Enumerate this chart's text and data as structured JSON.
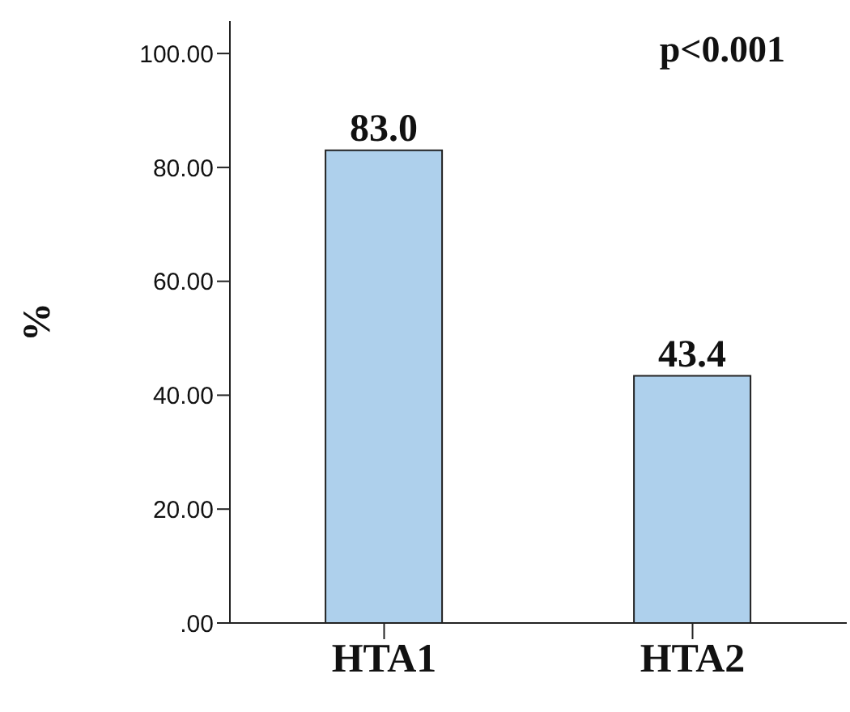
{
  "chart_data": {
    "type": "bar",
    "ylabel": "%",
    "categories": [
      "HTA1",
      "HTA2"
    ],
    "values": [
      83.0,
      43.4
    ],
    "value_labels": [
      "83.0",
      "43.4"
    ],
    "color": "#aed0ec",
    "ylim": [
      0,
      105.7
    ],
    "yticks": [
      {
        "value": 0,
        "label": ".00"
      },
      {
        "value": 20,
        "label": "20.00"
      },
      {
        "value": 40,
        "label": "40.00"
      },
      {
        "value": 60,
        "label": "60.00"
      },
      {
        "value": 80,
        "label": "80.00"
      },
      {
        "value": 100,
        "label": "100.00"
      }
    ],
    "annotations": [
      "p<0.001"
    ],
    "grid": false,
    "legend": false
  }
}
